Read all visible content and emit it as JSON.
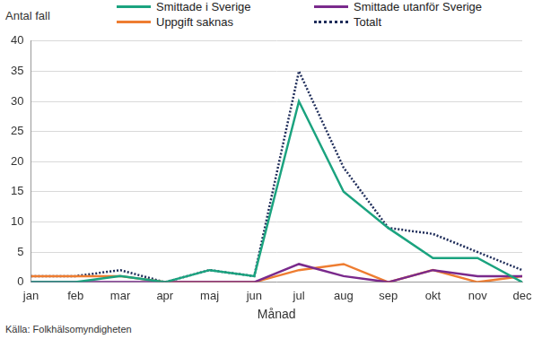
{
  "chart_data": {
    "type": "line",
    "y_label": "Antal fall",
    "x_label": "Månad",
    "source": "Källa: Folkhälsomyndigheten",
    "categories": [
      "jan",
      "feb",
      "mar",
      "apr",
      "maj",
      "jun",
      "jul",
      "aug",
      "sep",
      "okt",
      "nov",
      "dec"
    ],
    "series": [
      {
        "name": "Smittade i Sverige",
        "color": "#1ba37f",
        "line_style": "solid",
        "values": [
          0,
          0,
          1,
          0,
          2,
          1,
          30,
          15,
          9,
          4,
          4,
          0
        ]
      },
      {
        "name": "Smittade utanför Sverige",
        "color": "#7a2a8c",
        "line_style": "solid",
        "values": [
          0,
          0,
          0,
          0,
          0,
          0,
          3,
          1,
          0,
          2,
          1,
          1
        ]
      },
      {
        "name": "Uppgift saknas",
        "color": "#ee7d31",
        "line_style": "solid",
        "values": [
          1,
          1,
          1,
          0,
          0,
          0,
          2,
          3,
          0,
          2,
          0,
          1
        ]
      },
      {
        "name": "Totalt",
        "color": "#1f2d5a",
        "line_style": "dotted",
        "values": [
          1,
          1,
          2,
          0,
          2,
          1,
          35,
          19,
          9,
          8,
          5,
          2
        ]
      }
    ],
    "ylim": [
      0,
      40
    ],
    "yticks": [
      0,
      5,
      10,
      15,
      20,
      25,
      30,
      35,
      40
    ],
    "grid": true,
    "legend": "top"
  }
}
